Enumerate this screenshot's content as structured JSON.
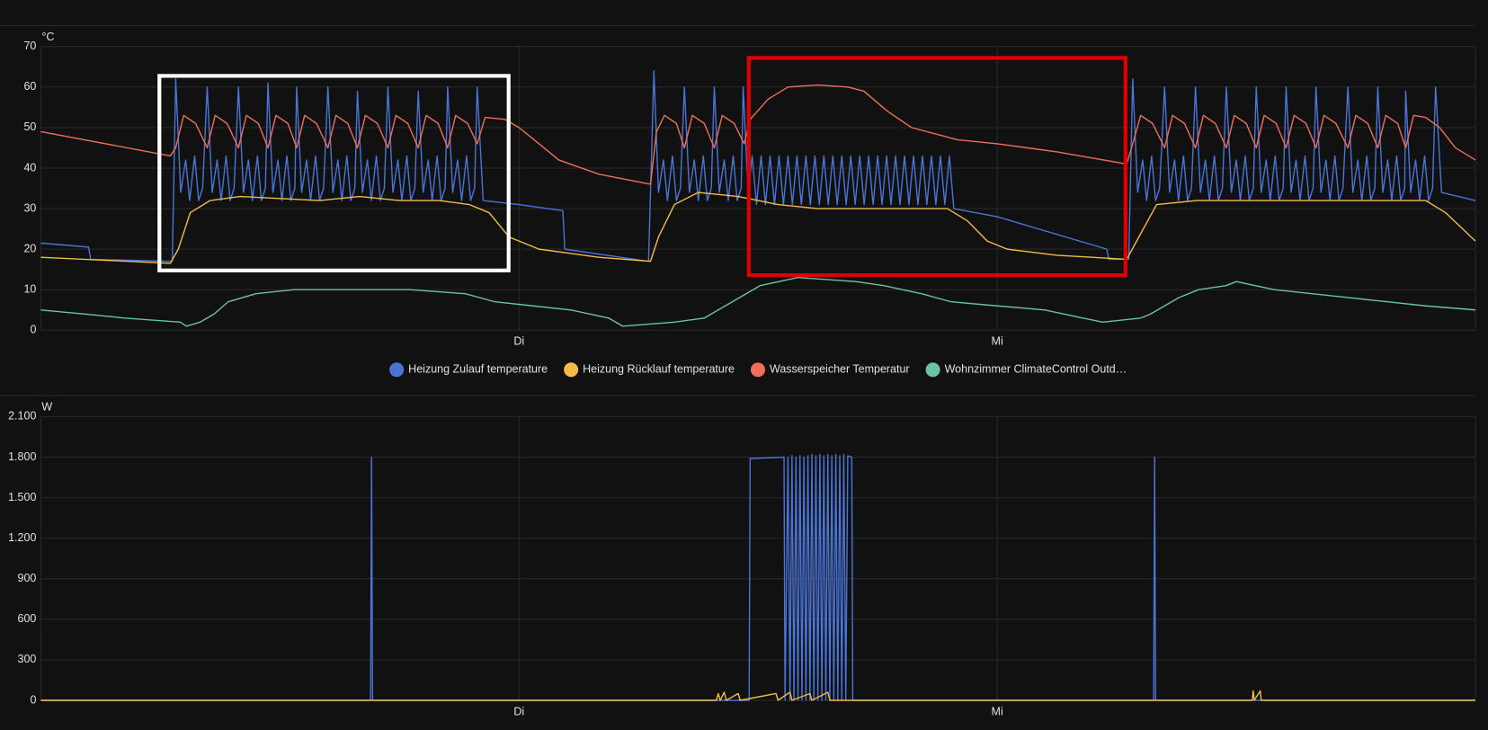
{
  "chart_data": [
    {
      "type": "line",
      "ylabel": "°C",
      "xlim": [
        0,
        72
      ],
      "xticks": [
        {
          "value": 24,
          "label": "Di"
        },
        {
          "value": 48,
          "label": "Mi"
        }
      ],
      "ylim": [
        0,
        70
      ],
      "yticks": [
        0,
        10,
        20,
        30,
        40,
        50,
        60,
        70
      ],
      "grid": true,
      "legend": true,
      "series": [
        {
          "name": "Heizung Zulauf temperature",
          "color": "#4a74d6",
          "x": [
            0,
            2.4,
            2.5,
            6.6,
            6.77,
            7.02,
            7.27,
            7.47,
            7.72,
            7.92,
            8.12,
            8.35,
            8.6,
            8.85,
            9.05,
            9.3,
            9.5,
            9.7,
            9.92,
            10.17,
            10.42,
            10.62,
            10.87,
            11.07,
            11.27,
            11.4,
            11.65,
            11.9,
            12.1,
            12.35,
            12.55,
            12.75,
            12.84,
            13.09,
            13.34,
            13.54,
            13.79,
            13.99,
            14.19,
            14.41,
            14.66,
            14.91,
            15.11,
            15.36,
            15.56,
            15.76,
            15.89,
            16.14,
            16.39,
            16.59,
            16.84,
            17.04,
            17.24,
            17.42,
            17.67,
            17.92,
            18.12,
            18.37,
            18.57,
            18.77,
            18.94,
            19.19,
            19.44,
            19.64,
            19.89,
            20.09,
            20.29,
            20.42,
            20.67,
            20.92,
            21.12,
            21.37,
            21.57,
            21.77,
            21.9,
            22.2,
            24,
            26.2,
            26.3,
            30.5,
            30.77,
            31.0,
            31.25,
            31.45,
            31.7,
            31.9,
            32.1,
            32.3,
            32.55,
            32.8,
            33.0,
            33.25,
            33.45,
            33.65,
            33.8,
            34.05,
            34.3,
            34.5,
            34.75,
            34.95,
            35.15,
            35.25,
            35.5,
            35.7,
            35.92,
            36.15,
            36.37,
            36.6,
            36.82,
            37.05,
            37.27,
            37.5,
            37.72,
            37.95,
            38.17,
            38.4,
            38.62,
            38.85,
            39.07,
            39.3,
            39.52,
            39.75,
            39.97,
            40.2,
            40.42,
            40.65,
            40.87,
            41.1,
            41.32,
            41.55,
            41.77,
            42.0,
            42.22,
            42.45,
            42.67,
            42.9,
            43.12,
            43.35,
            43.57,
            43.8,
            44.02,
            44.25,
            44.47,
            44.7,
            44.92,
            45.15,
            45.37,
            45.6,
            45.82,
            48,
            53.5,
            53.6,
            54.6,
            54.8,
            55.05,
            55.3,
            55.5,
            55.75,
            55.95,
            56.15,
            56.4,
            56.65,
            56.9,
            57.1,
            57.35,
            57.55,
            57.75,
            57.95,
            58.2,
            58.45,
            58.65,
            58.9,
            59.1,
            59.3,
            59.5,
            59.75,
            60.0,
            60.2,
            60.45,
            60.65,
            60.85,
            61.0,
            61.25,
            61.5,
            61.7,
            61.95,
            62.15,
            62.35,
            62.5,
            62.75,
            63.0,
            63.2,
            63.45,
            63.65,
            63.85,
            64.0,
            64.25,
            64.5,
            64.7,
            64.95,
            65.15,
            65.35,
            65.6,
            65.85,
            66.1,
            66.3,
            66.55,
            66.75,
            66.95,
            67.1,
            67.35,
            67.6,
            67.8,
            68.05,
            68.25,
            68.45,
            68.5,
            68.75,
            69.0,
            69.2,
            69.45,
            69.65,
            69.85,
            70.0,
            70.3,
            72
          ],
          "values": [
            21.5,
            20.5,
            17.5,
            17,
            62,
            34,
            42,
            32,
            43,
            32,
            35,
            60,
            34,
            42,
            32,
            43,
            32,
            35,
            60,
            34,
            42,
            32,
            43,
            32,
            35,
            61,
            34,
            42,
            32,
            43,
            32,
            35,
            60,
            34,
            42,
            32,
            43,
            32,
            35,
            60,
            34,
            42,
            32,
            43,
            32,
            35,
            59,
            34,
            42,
            32,
            43,
            32,
            35,
            60,
            34,
            42,
            32,
            43,
            32,
            35,
            59,
            34,
            42,
            32,
            43,
            32,
            35,
            60,
            34,
            42,
            32,
            43,
            32,
            35,
            60,
            32,
            31,
            29.5,
            20,
            17,
            64,
            34,
            42,
            32,
            43,
            32,
            35,
            60,
            34,
            42,
            32,
            43,
            32,
            35,
            60,
            34,
            42,
            32,
            43,
            32,
            35,
            60,
            34,
            43,
            31,
            43,
            31,
            43,
            31,
            43,
            31,
            43,
            31,
            43,
            31,
            43,
            31,
            43,
            31,
            43,
            31,
            43,
            31,
            43,
            31,
            43,
            31,
            43,
            31,
            43,
            31,
            43,
            31,
            43,
            31,
            43,
            31,
            43,
            31,
            43,
            31,
            43,
            31,
            43,
            31,
            43,
            31,
            43,
            30,
            28,
            20,
            17.5,
            17.5,
            62,
            34,
            42,
            32,
            43,
            32,
            35,
            60,
            34,
            42,
            32,
            43,
            32,
            35,
            60,
            34,
            42,
            32,
            43,
            32,
            35,
            60,
            34,
            42,
            32,
            43,
            32,
            35,
            60,
            34,
            42,
            32,
            43,
            32,
            35,
            60,
            34,
            42,
            32,
            43,
            32,
            35,
            60,
            34,
            42,
            32,
            43,
            32,
            35,
            60,
            34,
            42,
            32,
            43,
            32,
            35,
            60,
            34,
            42,
            32,
            43,
            32,
            35,
            59,
            34,
            42,
            32,
            43,
            32,
            35,
            60,
            34,
            32
          ]
        },
        {
          "name": "Heizung Rücklauf temperature",
          "color": "#f5bb47",
          "x": [
            0,
            6.5,
            6.9,
            7.5,
            8.5,
            10,
            12,
            14,
            16,
            18,
            20,
            21.5,
            22.5,
            23.5,
            25,
            28,
            30.6,
            31,
            31.8,
            33,
            35,
            37,
            39,
            41,
            43,
            45.5,
            46.5,
            47.5,
            48.5,
            51,
            54.5,
            55,
            56,
            58,
            60,
            62,
            64,
            66,
            68,
            69.5,
            70.5,
            72
          ],
          "values": [
            18,
            16.5,
            20,
            29,
            32,
            33,
            32.5,
            32,
            33,
            32,
            32,
            31,
            29,
            23,
            20,
            18,
            17,
            23,
            31,
            34,
            33,
            31,
            30,
            30,
            30,
            30,
            27,
            22,
            20,
            18.5,
            17.5,
            22,
            31,
            32,
            32,
            32,
            32,
            32,
            32,
            32,
            29,
            22
          ]
        },
        {
          "name": "Wasserspeicher Temperatur",
          "color": "#ef6e5b",
          "x": [
            0,
            6.5,
            6.77,
            7.17,
            7.77,
            8.35,
            8.75,
            9.35,
            9.92,
            10.32,
            10.92,
            11.4,
            11.8,
            12.4,
            12.84,
            13.24,
            13.84,
            14.41,
            14.81,
            15.41,
            15.89,
            16.29,
            16.89,
            17.42,
            17.82,
            18.42,
            18.94,
            19.34,
            19.94,
            20.42,
            20.82,
            21.42,
            21.9,
            22.3,
            23.3,
            24,
            26,
            28,
            30.6,
            30.9,
            31.3,
            31.9,
            32.3,
            32.7,
            33.3,
            33.8,
            34.2,
            34.8,
            35.3,
            35.6,
            36.5,
            37.5,
            39,
            40.5,
            41.3,
            42.5,
            43.7,
            46,
            48,
            51,
            54.5,
            54.8,
            55.2,
            55.8,
            56.4,
            56.8,
            57.4,
            57.95,
            58.35,
            58.95,
            59.5,
            59.9,
            60.5,
            61.0,
            61.4,
            62.0,
            62.5,
            62.9,
            63.5,
            64.0,
            64.4,
            65.0,
            65.6,
            66.0,
            66.6,
            67.1,
            67.5,
            68.1,
            68.5,
            68.9,
            69.5,
            70.2,
            71,
            72
          ],
          "values": [
            49,
            43,
            45,
            53,
            51,
            45,
            53,
            51,
            45,
            53,
            51,
            45,
            53,
            51,
            45,
            53,
            51,
            45,
            53,
            51,
            45,
            53,
            51,
            45,
            53,
            51,
            45,
            53,
            51,
            45,
            53,
            51,
            46,
            52.5,
            52,
            50,
            42,
            38.5,
            36,
            49,
            53,
            51,
            45,
            53,
            51,
            45,
            53,
            51,
            46,
            52,
            57,
            60,
            60.5,
            60,
            59,
            54,
            50,
            47,
            46,
            44,
            41,
            46,
            53,
            51,
            45,
            53,
            51,
            45,
            53,
            51,
            45,
            53,
            51,
            45,
            53,
            51,
            45,
            53,
            51,
            45,
            53,
            51,
            45,
            53,
            51,
            45,
            53,
            51,
            45,
            53,
            52.5,
            50,
            45,
            42
          ]
        },
        {
          "name": "Wohnzimmer ClimateControl Outd…",
          "color": "#6ac3a3",
          "x": [
            0,
            2.2,
            4.2,
            7.0,
            7.3,
            8.0,
            8.7,
            9.4,
            10.8,
            12.7,
            18.5,
            21.3,
            22.8,
            24.7,
            26.6,
            28.5,
            29.2,
            31.8,
            33.3,
            34.7,
            36.1,
            38.0,
            40.9,
            42.3,
            44.2,
            45.7,
            48.0,
            50.4,
            52.3,
            53.3,
            55.2,
            55.7,
            57.1,
            58.1,
            59.5,
            60.0,
            61.9,
            63.8,
            65.7,
            67.6,
            69.5,
            72
          ],
          "values": [
            5,
            4,
            3,
            2,
            1,
            2,
            4,
            7,
            9,
            10,
            10,
            9,
            7,
            6,
            5,
            3,
            1,
            2,
            3,
            7,
            11,
            13,
            12,
            11,
            9,
            7,
            6,
            5,
            3,
            2,
            3,
            4,
            8,
            10,
            11,
            12,
            10,
            9,
            8,
            7,
            6,
            5
          ]
        }
      ]
    },
    {
      "type": "line",
      "ylabel": "W",
      "xlim": [
        0,
        72
      ],
      "xticks": [
        {
          "value": 24,
          "label": "Di"
        },
        {
          "value": 48,
          "label": "Mi"
        }
      ],
      "ylim": [
        0,
        2100
      ],
      "yticks": [
        0,
        300,
        600,
        900,
        {
          "value": 1200,
          "label": "1.200"
        },
        {
          "value": 1500,
          "label": "1.500"
        },
        {
          "value": 1800,
          "label": "1.800"
        },
        {
          "value": 2100,
          "label": "2.100"
        }
      ],
      "grid": true,
      "legend": false,
      "series": [
        {
          "color": "#4a74d6",
          "x": [
            0,
            16.55,
            16.6,
            16.65,
            35.55,
            35.6,
            37.3,
            37.35,
            37.5,
            37.6,
            37.7,
            37.8,
            37.9,
            38.0,
            38.1,
            38.2,
            38.3,
            38.4,
            38.5,
            38.6,
            38.7,
            38.8,
            38.9,
            39.0,
            39.1,
            39.2,
            39.3,
            39.4,
            39.5,
            39.6,
            39.7,
            39.8,
            39.9,
            40.0,
            40.1,
            40.2,
            40.3,
            40.4,
            40.5,
            40.7,
            40.75,
            55.85,
            55.9,
            55.95,
            72
          ],
          "values": [
            0,
            0,
            1800,
            0,
            0,
            1790,
            1800,
            0,
            1800,
            0,
            1810,
            0,
            1800,
            0,
            1810,
            0,
            1800,
            0,
            1810,
            0,
            1820,
            0,
            1810,
            0,
            1820,
            0,
            1810,
            0,
            1820,
            0,
            1810,
            0,
            1820,
            0,
            1810,
            0,
            1820,
            0,
            1810,
            1800,
            0,
            0,
            1800,
            0,
            0
          ]
        },
        {
          "color": "#f5bb47",
          "x": [
            0,
            33.9,
            34.0,
            34.1,
            34.3,
            34.4,
            35.0,
            35.1,
            36.9,
            37.0,
            37.6,
            37.7,
            38.6,
            38.7,
            39.5,
            39.6,
            60.8,
            60.85,
            60.9,
            61.2,
            61.25,
            72
          ],
          "values": [
            0,
            0,
            50,
            0,
            60,
            0,
            50,
            0,
            50,
            0,
            60,
            0,
            50,
            0,
            60,
            0,
            0,
            70,
            0,
            70,
            0,
            0
          ]
        }
      ]
    }
  ]
}
